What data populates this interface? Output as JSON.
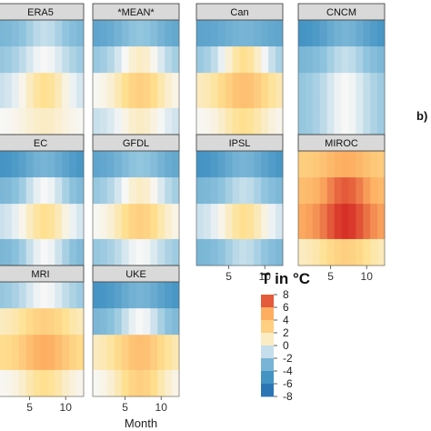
{
  "chart_data": {
    "type": "heatmap",
    "colorbar_title": "T in °C",
    "colorbar_ticks": [
      "8",
      "6",
      "4",
      "2",
      "0",
      "-2",
      "-4",
      "-6",
      "-8"
    ],
    "colorbar_range": [
      -8,
      8
    ],
    "x_ticks": [
      "5",
      "10"
    ],
    "x_tick_values": [
      5,
      10
    ],
    "x_range": [
      1,
      12
    ],
    "xlabel": "Month",
    "side_label": "b)",
    "colors": {
      "neg_strong": "#2166ac",
      "neg_mid": "#4393c3",
      "neg_light": "#92c5de",
      "neutral": "#f7f7f7",
      "pos_light": "#fee090",
      "pos_mid": "#fdae61",
      "pos_strong": "#d73027",
      "strip": "#d9d9d9"
    },
    "panels": [
      {
        "name": "ERA5",
        "grid_rows": 13,
        "pattern": [
          [
            -3,
            -1
          ],
          [
            -2,
            0
          ],
          [
            -1,
            2
          ],
          [
            0,
            1
          ]
        ]
      },
      {
        "name": "*MEAN*",
        "grid_rows": 13,
        "pattern": [
          [
            -4,
            -2
          ],
          [
            -2,
            1
          ],
          [
            0,
            3
          ],
          [
            -1,
            1
          ]
        ]
      },
      {
        "name": "Can",
        "grid_rows": 13,
        "pattern": [
          [
            -4,
            -3
          ],
          [
            -2,
            2
          ],
          [
            1,
            4
          ],
          [
            0,
            2
          ]
        ]
      },
      {
        "name": "CNCM",
        "grid_rows": 13,
        "pattern": [
          [
            -5,
            -3
          ],
          [
            -3,
            -1
          ],
          [
            -2,
            0
          ],
          [
            -2,
            0
          ]
        ]
      },
      {
        "name": "EC",
        "grid_rows": 13,
        "pattern": [
          [
            -5,
            -3
          ],
          [
            -3,
            0
          ],
          [
            -1,
            2
          ],
          [
            -3,
            0
          ]
        ]
      },
      {
        "name": "GFDL",
        "grid_rows": 13,
        "pattern": [
          [
            -4,
            -2
          ],
          [
            -2,
            1
          ],
          [
            0,
            3
          ],
          [
            -2,
            0
          ]
        ]
      },
      {
        "name": "IPSL",
        "grid_rows": 13,
        "pattern": [
          [
            -5,
            -3
          ],
          [
            -3,
            -1
          ],
          [
            -1,
            2
          ],
          [
            -3,
            -1
          ]
        ]
      },
      {
        "name": "MIROC",
        "grid_rows": 13,
        "pattern": [
          [
            3,
            5
          ],
          [
            4,
            7
          ],
          [
            5,
            8
          ],
          [
            1,
            3
          ]
        ]
      },
      {
        "name": "MRI",
        "grid_rows": 13,
        "pattern": [
          [
            -2,
            0
          ],
          [
            1,
            3
          ],
          [
            2,
            5
          ],
          [
            0,
            2
          ]
        ]
      },
      {
        "name": "UKE",
        "grid_rows": 13,
        "pattern": [
          [
            -5,
            -3
          ],
          [
            -3,
            0
          ],
          [
            1,
            4
          ],
          [
            0,
            3
          ]
        ]
      }
    ]
  }
}
